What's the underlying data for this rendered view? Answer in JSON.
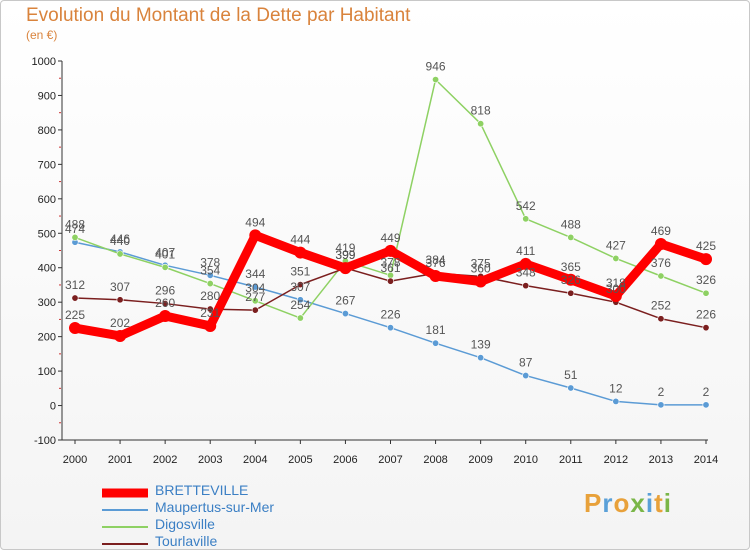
{
  "header": {
    "title": "Evolution du Montant de la Dette par Habitant",
    "subtitle": "(en €)"
  },
  "brand": {
    "letters": [
      "P",
      "r",
      "o",
      "x",
      "i",
      "t",
      "i"
    ],
    "colors": [
      "#e8a13a",
      "#5aa0d8",
      "#e8a13a",
      "#7ab648",
      "#5aa0d8",
      "#e8a13a",
      "#7ab648"
    ]
  },
  "chart_data": {
    "type": "line",
    "x": [
      "2000",
      "2001",
      "2002",
      "2003",
      "2004",
      "2005",
      "2006",
      "2007",
      "2008",
      "2009",
      "2010",
      "2011",
      "2012",
      "2013",
      "2014"
    ],
    "ylim": [
      -100,
      1000
    ],
    "yticks": [
      "-100",
      "0",
      "100",
      "200",
      "300",
      "400",
      "500",
      "600",
      "700",
      "800",
      "900",
      "1000"
    ],
    "grid": false,
    "legend_position": "bottom-left",
    "series": [
      {
        "name": "BRETTEVILLE",
        "color": "#ff0000",
        "width": 9,
        "values": [
          225,
          202,
          260,
          231,
          494,
          444,
          399,
          449,
          376,
          360,
          411,
          365,
          318,
          469,
          425
        ],
        "labels": [
          "225",
          "202",
          "260",
          "231",
          "494",
          "444",
          "399",
          "449",
          "376",
          "360",
          "411",
          "365",
          "318",
          "469",
          "425"
        ]
      },
      {
        "name": "Maupertus-sur-Mer",
        "color": "#5b9bd5",
        "width": 1.5,
        "values": [
          474,
          446,
          407,
          378,
          344,
          307,
          267,
          226,
          181,
          139,
          87,
          51,
          12,
          2,
          2
        ],
        "labels": [
          "474",
          "446",
          "407",
          "378",
          "344",
          "307",
          "267",
          "226",
          "181",
          "139",
          "87",
          "51",
          "12",
          "2",
          "2"
        ]
      },
      {
        "name": "Digosville",
        "color": "#8ed163",
        "width": 1.5,
        "values": [
          488,
          440,
          401,
          354,
          304,
          254,
          419,
          378,
          946,
          818,
          542,
          488,
          427,
          376,
          326
        ],
        "labels": [
          "488",
          "440",
          "401",
          "354",
          "304",
          "254",
          "419",
          "378",
          "946",
          "818",
          "542",
          "488",
          "427",
          "376",
          "326"
        ]
      },
      {
        "name": "Tourlaville",
        "color": "#7b1f1f",
        "width": 1.5,
        "values": [
          312,
          307,
          296,
          280,
          277,
          351,
          399,
          361,
          384,
          375,
          348,
          326,
          300,
          252,
          226
        ],
        "labels": [
          "312",
          "307",
          "296",
          "280",
          "277",
          "351",
          "399",
          "361",
          "384",
          "375",
          "348",
          "326",
          "300",
          "252",
          "226"
        ]
      }
    ]
  }
}
